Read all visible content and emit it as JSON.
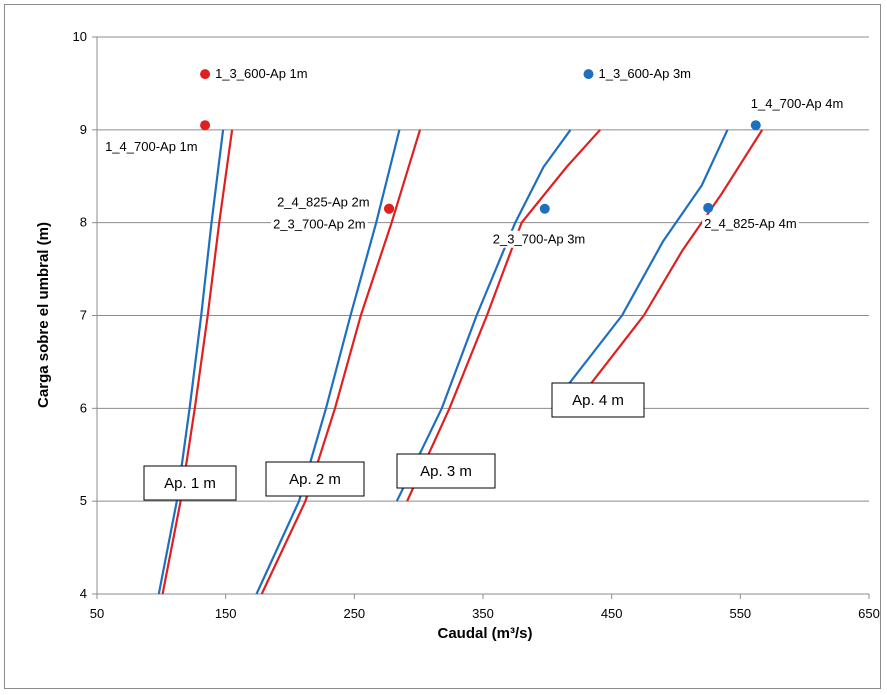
{
  "chart_data": {
    "type": "line",
    "title": "",
    "xlabel": "Caudal (m³/s)",
    "ylabel": "Carga sobre el umbral (m)",
    "xlim": [
      50,
      650
    ],
    "ylim": [
      4,
      10
    ],
    "xticks": [
      "50",
      "150",
      "250",
      "350",
      "450",
      "550",
      "650"
    ],
    "yticks": [
      "4",
      "5",
      "6",
      "7",
      "8",
      "9",
      "10"
    ],
    "grid": "horizontal",
    "legend": "none",
    "colors": {
      "blue": "#1f6fc0",
      "red": "#e02020"
    },
    "series": [
      {
        "color": "#1f6fc0",
        "points": [
          [
            98,
            4
          ],
          [
            112,
            5
          ],
          [
            122,
            6
          ],
          [
            131,
            7
          ],
          [
            139,
            8
          ],
          [
            148,
            9
          ]
        ]
      },
      {
        "color": "#e02020",
        "points": [
          [
            101,
            4
          ],
          [
            115,
            5
          ],
          [
            126,
            6
          ],
          [
            136,
            7
          ],
          [
            145,
            8
          ],
          [
            155,
            9
          ]
        ]
      },
      {
        "color": "#1f6fc0",
        "points": [
          [
            174,
            4
          ],
          [
            207,
            5
          ],
          [
            228,
            6
          ],
          [
            247,
            7
          ],
          [
            267,
            8
          ],
          [
            285,
            9
          ]
        ]
      },
      {
        "color": "#e02020",
        "points": [
          [
            178,
            4
          ],
          [
            212,
            5
          ],
          [
            235,
            6
          ],
          [
            255,
            7
          ],
          [
            279,
            8
          ],
          [
            301,
            9
          ]
        ]
      },
      {
        "color": "#1f6fc0",
        "points": [
          [
            283,
            5
          ],
          [
            318,
            6
          ],
          [
            345,
            7
          ],
          [
            375,
            8
          ],
          [
            397,
            8.6
          ],
          [
            418,
            9
          ]
        ]
      },
      {
        "color": "#e02020",
        "points": [
          [
            291,
            5
          ],
          [
            324,
            6
          ],
          [
            353,
            7
          ],
          [
            380,
            8
          ],
          [
            415,
            8.6
          ],
          [
            441,
            9
          ]
        ]
      },
      {
        "color": "#1f6fc0",
        "points": [
          [
            416,
            6.25
          ],
          [
            458,
            7
          ],
          [
            490,
            7.8
          ],
          [
            520,
            8.4
          ],
          [
            540,
            9
          ]
        ]
      },
      {
        "color": "#e02020",
        "points": [
          [
            433,
            6.25
          ],
          [
            475,
            7
          ],
          [
            505,
            7.7
          ],
          [
            535,
            8.3
          ],
          [
            567,
            9
          ]
        ]
      }
    ],
    "points": [
      {
        "x": 134,
        "y": 9.6,
        "color": "#e02020",
        "label": "1_3_600-Ap 1m"
      },
      {
        "x": 134,
        "y": 9.05,
        "color": "#e02020",
        "label": "1_4_700-Ap 1m"
      },
      {
        "x": 277,
        "y": 8.15,
        "color": "#e02020",
        "label": "2_4_825-Ap 2m"
      },
      {
        "x": 277,
        "y": 8.15,
        "color": "#e02020",
        "label": "2_3_700-Ap 2m"
      },
      {
        "x": 432,
        "y": 9.6,
        "color": "#1f6fc0",
        "label": "1_3_600-Ap 3m"
      },
      {
        "x": 398,
        "y": 8.15,
        "color": "#1f6fc0",
        "label": "2_3_700-Ap 3m"
      },
      {
        "x": 562,
        "y": 9.05,
        "color": "#1f6fc0",
        "label": "1_4_700-Ap 4m"
      },
      {
        "x": 525,
        "y": 8.16,
        "color": "#1f6fc0",
        "label": "2_4_825-Ap 4m"
      }
    ],
    "annotations": [
      {
        "text": "Ap. 1 m"
      },
      {
        "text": "Ap. 2 m"
      },
      {
        "text": "Ap. 3 m"
      },
      {
        "text": "Ap. 4 m"
      }
    ]
  }
}
